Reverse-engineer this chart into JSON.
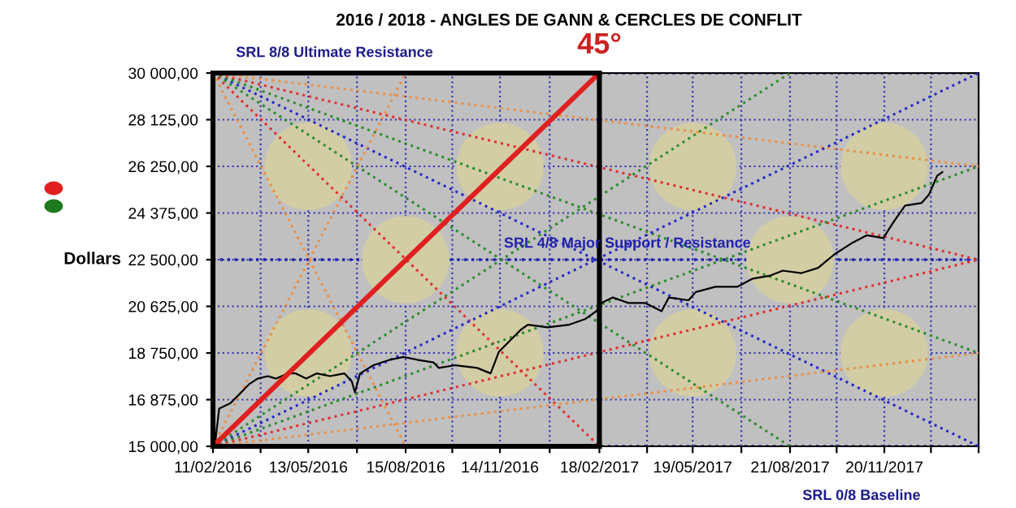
{
  "chart_data": {
    "type": "line",
    "title": "2016 / 2018 - ANGLES DE GANN & CERCLES DE CONFLIT",
    "ylabel": "Dollars",
    "xlim": [
      "2016-02-11",
      "2018-02-19"
    ],
    "ylim": [
      15000,
      30000
    ],
    "yticks": [
      {
        "value": 15000,
        "label": "15 000,00"
      },
      {
        "value": 16875,
        "label": "16 875,00"
      },
      {
        "value": 18750,
        "label": "18 750,00"
      },
      {
        "value": 20625,
        "label": "20 625,00"
      },
      {
        "value": 22500,
        "label": "22 500,00"
      },
      {
        "value": 24375,
        "label": "24 375,00"
      },
      {
        "value": 26250,
        "label": "26 250,00"
      },
      {
        "value": 28125,
        "label": "28 125,00"
      },
      {
        "value": 30000,
        "label": "30 000,00"
      }
    ],
    "xticks": [
      {
        "value": "2016-02-11",
        "label": "11/02/2016"
      },
      {
        "value": "2016-03-28",
        "label": null
      },
      {
        "value": "2016-05-13",
        "label": "13/05/2016"
      },
      {
        "value": "2016-06-29",
        "label": null
      },
      {
        "value": "2016-08-15",
        "label": "15/08/2016"
      },
      {
        "value": "2016-09-29",
        "label": null
      },
      {
        "value": "2016-11-14",
        "label": "14/11/2016"
      },
      {
        "value": "2017-01-01",
        "label": null
      },
      {
        "value": "2017-02-18",
        "label": "18/02/2017"
      },
      {
        "value": "2017-04-05",
        "label": null
      },
      {
        "value": "2017-05-19",
        "label": "19/05/2017"
      },
      {
        "value": "2017-07-05",
        "label": null
      },
      {
        "value": "2017-08-21",
        "label": "21/08/2017"
      },
      {
        "value": "2017-10-05",
        "label": null
      },
      {
        "value": "2017-11-20",
        "label": "20/11/2017"
      },
      {
        "value": "2018-01-04",
        "label": null
      },
      {
        "value": "2018-02-19",
        "label": null
      }
    ],
    "grid": true,
    "legend": false,
    "ref_lines": [
      {
        "axis": "y",
        "value": 30000,
        "label": "SRL 8/8 Ultimate Resistance",
        "color": "#1c1c8c",
        "line_style": "dotted"
      },
      {
        "axis": "y",
        "value": 22500,
        "label": "SRL 4/8 Major Support / Resistance",
        "color": "#2020b0",
        "line_style": "dotted"
      },
      {
        "axis": "y",
        "value": 15000,
        "label": "SRL 0/8 Baseline",
        "color": "#1c1c8c",
        "line_style": "dotted"
      }
    ],
    "annotations": [
      {
        "text": "45°",
        "x": "2017-02-18",
        "y": 30000
      }
    ],
    "series": [
      {
        "type": "scatter",
        "marker": "circle",
        "color": "#d2cda4",
        "x": [
          "2016-05-13",
          "2016-05-13",
          "2016-08-15",
          "2016-11-14",
          "2016-11-14",
          "2017-05-19",
          "2017-05-19",
          "2017-08-21",
          "2017-11-20",
          "2017-11-20"
        ],
        "values": [
          26250,
          18750,
          22500,
          26250,
          18750,
          26250,
          18750,
          22500,
          26250,
          18750
        ]
      },
      {
        "type": "line",
        "line_style": "dotted",
        "color": "#2828c8",
        "x": [
          "2016-02-11",
          "2018-02-19"
        ],
        "values": [
          30000,
          15000
        ]
      },
      {
        "type": "line",
        "line_style": "dotted",
        "color": "#2e8b2e",
        "x": [
          "2016-02-11",
          "2017-08-21"
        ],
        "values": [
          30000,
          15000
        ]
      },
      {
        "type": "line",
        "line_style": "dotted",
        "color": "#2e8b2e",
        "x": [
          "2016-02-11",
          "2018-02-19"
        ],
        "values": [
          30000,
          18750
        ]
      },
      {
        "type": "line",
        "line_style": "dotted",
        "color": "#e03030",
        "x": [
          "2016-02-11",
          "2018-02-19"
        ],
        "values": [
          30000,
          22500
        ]
      },
      {
        "type": "line",
        "line_style": "dotted",
        "color": "#e03030",
        "x": [
          "2016-02-11",
          "2017-02-18"
        ],
        "values": [
          30000,
          15000
        ]
      },
      {
        "type": "line",
        "line_style": "dotted",
        "color": "#e8904a",
        "x": [
          "2016-02-11",
          "2018-02-19"
        ],
        "values": [
          30000,
          26250
        ]
      },
      {
        "type": "line",
        "line_style": "dotted",
        "color": "#e8904a",
        "x": [
          "2016-02-11",
          "2016-08-15"
        ],
        "values": [
          30000,
          15000
        ]
      },
      {
        "type": "line",
        "line_style": "dotted",
        "color": "#2828c8",
        "x": [
          "2016-02-11",
          "2018-02-19"
        ],
        "values": [
          15000,
          30000
        ]
      },
      {
        "type": "line",
        "line_style": "dotted",
        "color": "#2e8b2e",
        "x": [
          "2016-02-11",
          "2017-08-21"
        ],
        "values": [
          15000,
          30000
        ]
      },
      {
        "type": "line",
        "line_style": "dotted",
        "color": "#2e8b2e",
        "x": [
          "2016-02-11",
          "2018-02-19"
        ],
        "values": [
          15000,
          26250
        ]
      },
      {
        "type": "line",
        "line_style": "dotted",
        "color": "#e03030",
        "x": [
          "2016-02-11",
          "2018-02-19"
        ],
        "values": [
          15000,
          22500
        ]
      },
      {
        "type": "line",
        "line_style": "dotted",
        "color": "#e8904a",
        "x": [
          "2016-02-11",
          "2018-02-19"
        ],
        "values": [
          15000,
          18750
        ]
      },
      {
        "type": "line",
        "line_style": "dotted",
        "color": "#e8904a",
        "x": [
          "2016-02-11",
          "2016-08-15"
        ],
        "values": [
          15000,
          30000
        ]
      },
      {
        "line_style": "solid",
        "color": "#000000",
        "x": [
          "2016-02-13",
          "2016-02-17",
          "2016-02-28",
          "2016-03-07",
          "2016-03-17",
          "2016-03-25",
          "2016-04-04",
          "2016-04-12",
          "2016-04-23",
          "2016-05-01",
          "2016-05-11",
          "2016-05-21",
          "2016-06-03",
          "2016-06-17",
          "2016-06-24",
          "2016-06-27",
          "2016-07-02",
          "2016-07-15",
          "2016-07-31",
          "2016-08-13",
          "2016-08-26",
          "2016-09-11",
          "2016-09-16",
          "2016-10-02",
          "2016-10-23",
          "2016-11-05",
          "2016-11-13",
          "2016-12-04",
          "2016-12-11",
          "2016-12-30",
          "2017-01-20",
          "2017-02-04",
          "2017-02-15",
          "2017-02-20",
          "2017-03-03",
          "2017-03-18",
          "2017-04-03",
          "2017-04-19",
          "2017-04-26",
          "2017-05-15",
          "2017-05-22",
          "2017-06-10",
          "2017-07-01",
          "2017-07-16",
          "2017-08-01",
          "2017-08-14",
          "2017-09-01",
          "2017-09-17",
          "2017-10-03",
          "2017-10-19",
          "2017-11-03",
          "2017-11-19",
          "2017-11-29",
          "2017-12-10",
          "2017-12-26",
          "2018-01-02",
          "2018-01-10",
          "2018-01-15"
        ],
        "values": [
          15100,
          16520,
          16740,
          17070,
          17500,
          17720,
          17820,
          17720,
          17930,
          17930,
          17720,
          17930,
          17820,
          17930,
          17610,
          17170,
          17930,
          18260,
          18480,
          18590,
          18480,
          18370,
          18150,
          18260,
          18150,
          17930,
          18800,
          19680,
          19890,
          19780,
          19890,
          20110,
          20430,
          20760,
          20980,
          20760,
          20760,
          20430,
          20980,
          20870,
          21200,
          21410,
          21410,
          21740,
          21850,
          22060,
          21960,
          22170,
          22720,
          23150,
          23480,
          23370,
          24020,
          24670,
          24780,
          25110,
          25870,
          26020
        ]
      },
      {
        "line_style": "solid",
        "color": "#e02020",
        "x": [
          "2016-02-11",
          "2017-02-18"
        ],
        "values": [
          15000,
          30000
        ]
      }
    ]
  }
}
